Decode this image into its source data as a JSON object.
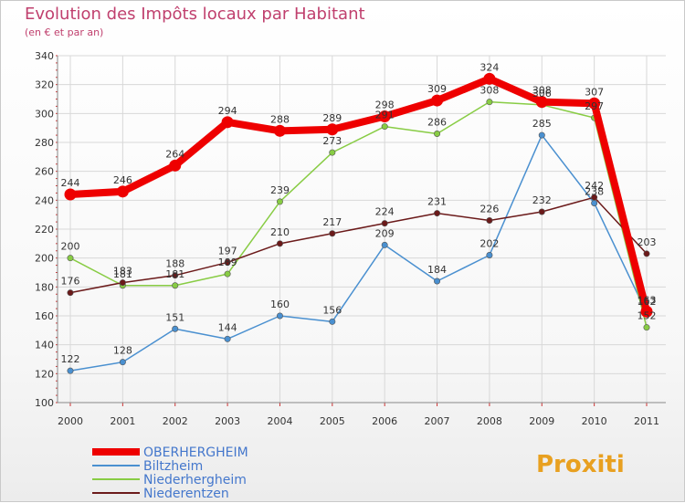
{
  "title": "Evolution des Impôts locaux par Habitant",
  "subtitle": "(en € et par an)",
  "logo_text": "Proxiti",
  "chart_data": {
    "type": "line",
    "x": [
      "2000",
      "2001",
      "2002",
      "2003",
      "2004",
      "2005",
      "2006",
      "2007",
      "2008",
      "2009",
      "2010",
      "2011"
    ],
    "ylim": [
      100,
      340
    ],
    "yticks": [
      100,
      120,
      140,
      160,
      180,
      200,
      220,
      240,
      260,
      280,
      300,
      320,
      340
    ],
    "grid": true,
    "legend_position": "bottom-left",
    "series": [
      {
        "name": "OBERHERGHEIM",
        "color": "#ee0000",
        "values": [
          244,
          246,
          264,
          294,
          288,
          289,
          298,
          309,
          324,
          308,
          307,
          163
        ]
      },
      {
        "name": "Biltzheim",
        "color": "#4a90d0",
        "values": [
          122,
          128,
          151,
          144,
          160,
          156,
          209,
          184,
          202,
          285,
          238,
          162
        ]
      },
      {
        "name": "Niederhergheim",
        "color": "#88cc44",
        "values": [
          200,
          181,
          181,
          189,
          239,
          273,
          291,
          286,
          308,
          306,
          297,
          152
        ]
      },
      {
        "name": "Niederentzen",
        "color": "#6b1a1a",
        "values": [
          176,
          183,
          188,
          197,
          210,
          217,
          224,
          231,
          226,
          232,
          242,
          203
        ]
      }
    ]
  }
}
